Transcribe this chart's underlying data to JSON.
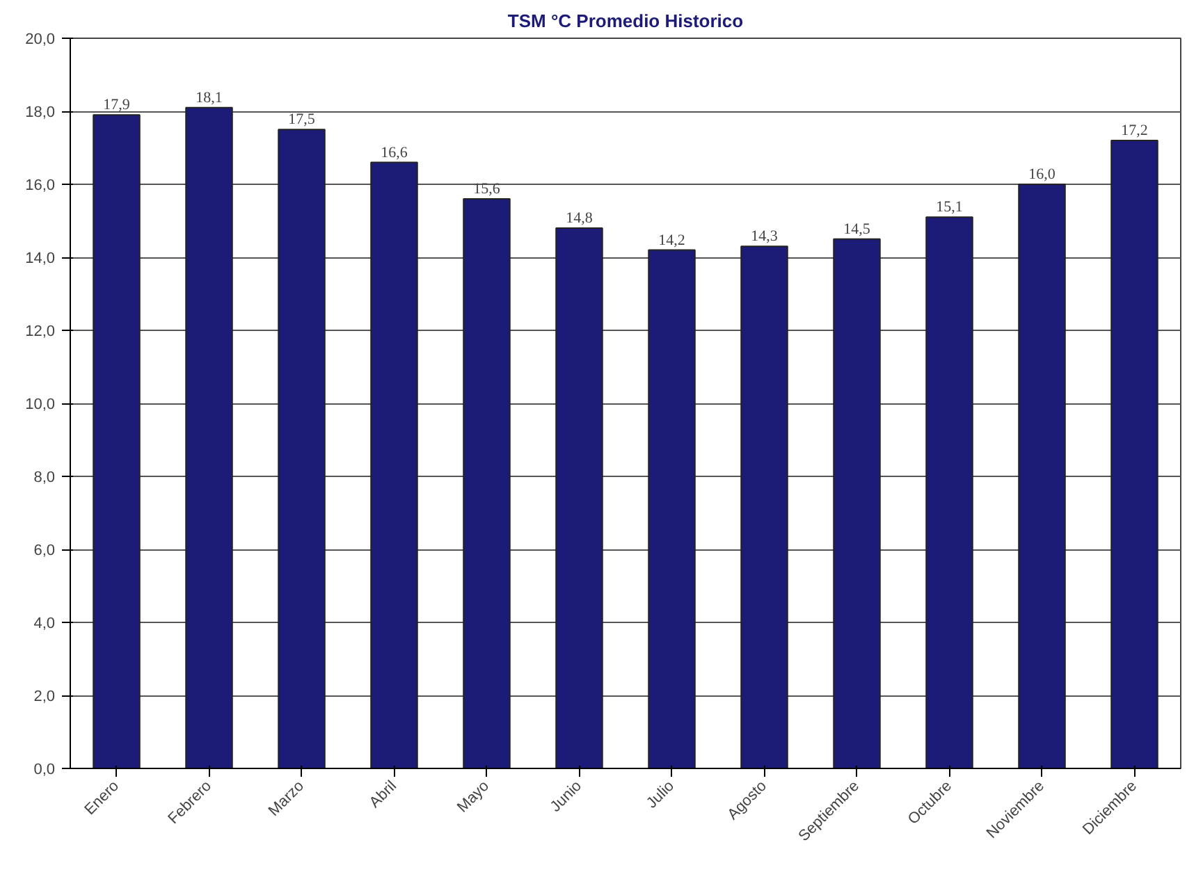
{
  "chart_data": {
    "type": "bar",
    "title": "TSM °C Promedio Historico",
    "categories": [
      "Enero",
      "Febrero",
      "Marzo",
      "Abril",
      "Mayo",
      "Junio",
      "Julio",
      "Agosto",
      "Septiembre",
      "Octubre",
      "Noviembre",
      "Diciembre"
    ],
    "values": [
      17.9,
      18.1,
      17.5,
      16.6,
      15.6,
      14.8,
      14.2,
      14.3,
      14.5,
      15.1,
      16.0,
      17.2
    ],
    "value_labels": [
      "17,9",
      "18,1",
      "17,5",
      "16,6",
      "15,6",
      "14,8",
      "14,2",
      "14,3",
      "14,5",
      "15,1",
      "16,0",
      "17,2"
    ],
    "color": "#1c1c78",
    "ylim": [
      0,
      20
    ],
    "yticks": [
      {
        "value": 0,
        "label": "0,0"
      },
      {
        "value": 2,
        "label": "2,0"
      },
      {
        "value": 4,
        "label": "4,0"
      },
      {
        "value": 6,
        "label": "6,0"
      },
      {
        "value": 8,
        "label": "8,0"
      },
      {
        "value": 10,
        "label": "10,0"
      },
      {
        "value": 12,
        "label": "12,0"
      },
      {
        "value": 14,
        "label": "14,0"
      },
      {
        "value": 16,
        "label": "16,0"
      },
      {
        "value": 18,
        "label": "18,0"
      },
      {
        "value": 20,
        "label": "20,0"
      }
    ],
    "grid": "y"
  }
}
